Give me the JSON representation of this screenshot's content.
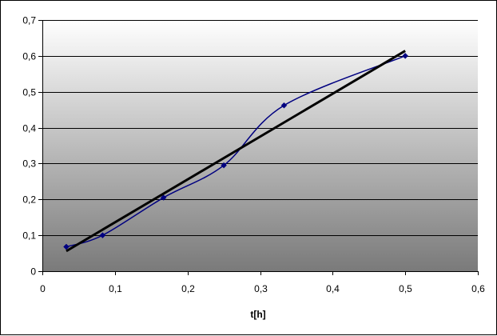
{
  "chart_data": {
    "type": "scatter",
    "title": "",
    "xlabel": "t[h]",
    "ylabel": "",
    "xlim": [
      0,
      0.6
    ],
    "ylim": [
      0,
      0.7
    ],
    "x_ticks": [
      0,
      0.1,
      0.2,
      0.3,
      0.4,
      0.5,
      0.6
    ],
    "x_tick_labels": [
      "0",
      "0,1",
      "0,2",
      "0,3",
      "0,4",
      "0,5",
      "0,6"
    ],
    "y_ticks": [
      0,
      0.1,
      0.2,
      0.3,
      0.4,
      0.5,
      0.6,
      0.7
    ],
    "y_tick_labels": [
      "0",
      "0,1",
      "0,2",
      "0,3",
      "0,4",
      "0,5",
      "0,6",
      "0,7"
    ],
    "grid": "horizontal",
    "legend": "none",
    "plot_background": "vertical-gradient-white-to-gray",
    "series": [
      {
        "kind": "smoothed-line-with-markers",
        "color": "#000080",
        "marker": "diamond",
        "x": [
          0.033,
          0.083,
          0.167,
          0.25,
          0.333,
          0.5
        ],
        "y": [
          0.068,
          0.1,
          0.205,
          0.295,
          0.462,
          0.6
        ]
      },
      {
        "kind": "linear-trendline",
        "color": "#000000",
        "x": [
          0.033,
          0.5
        ],
        "y": [
          0.056,
          0.614
        ]
      }
    ]
  }
}
